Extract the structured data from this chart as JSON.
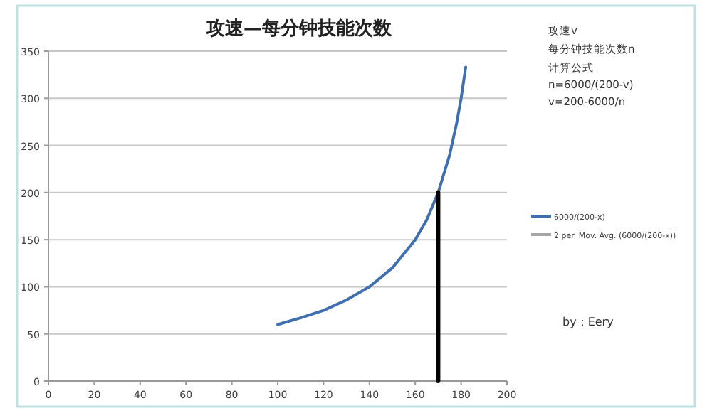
{
  "chart_data": {
    "type": "line",
    "title": "攻速—每分钟技能次数",
    "x": [
      100,
      110,
      120,
      130,
      140,
      150,
      160,
      165,
      170,
      175,
      178,
      180,
      182
    ],
    "series": [
      {
        "name": "6000/(200-x)",
        "color": "#3f6fb0",
        "values": [
          60,
          67,
          75,
          86,
          100,
          120,
          150,
          171,
          200,
          240,
          273,
          300,
          333
        ]
      },
      {
        "name": "2 per. Mov. Avg. (6000/(200-x))",
        "color": "#a6a6a6",
        "values": [
          null,
          null,
          null,
          null,
          null,
          null,
          null,
          null,
          null,
          null,
          null,
          null,
          null
        ]
      },
      {
        "color": "#000000",
        "x": [
          170,
          170
        ],
        "values": [
          0,
          200
        ]
      }
    ],
    "xlim": [
      0,
      200
    ],
    "xticks": [
      0,
      20,
      40,
      60,
      80,
      100,
      120,
      140,
      160,
      180,
      200
    ],
    "ylim": [
      0,
      350
    ],
    "yticks": [
      0,
      50,
      100,
      150,
      200,
      250,
      300,
      350
    ],
    "grid": "y",
    "legend": "right",
    "marker": "none",
    "annotations": [
      "攻速v",
      "每分钟技能次数n",
      "计算公式",
      "n=6000/(200-v)",
      "v=200-6000/n",
      "by：Eery"
    ]
  }
}
